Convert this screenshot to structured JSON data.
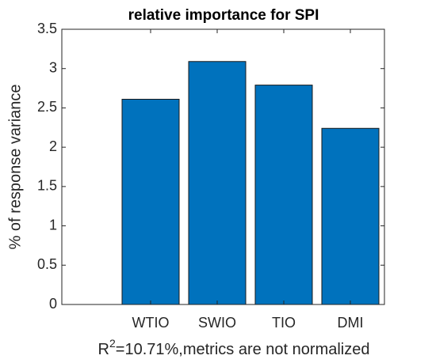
{
  "chart_data": {
    "type": "bar",
    "title": "relative importance for SPI",
    "categories": [
      "WTIO",
      "SWIO",
      "TIO",
      "DMI"
    ],
    "values": [
      2.61,
      3.09,
      2.79,
      2.24
    ],
    "color": "#0072bd",
    "ylabel": "% of response variance",
    "xlabel": {
      "base": "R",
      "superscript": "2",
      "rest": "=10.71%,metrics are not normalized"
    },
    "ylim": [
      0,
      3.5
    ],
    "yticks": [
      0,
      0.5,
      1,
      1.5,
      2,
      2.5,
      3,
      3.5
    ]
  }
}
